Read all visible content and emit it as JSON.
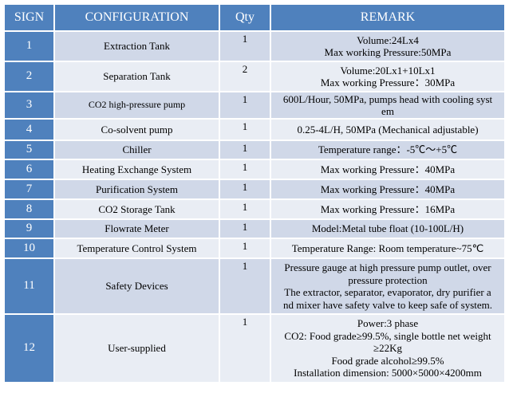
{
  "header": {
    "sign": "SIGN",
    "configuration": "CONFIGURATION",
    "qty": "Qty",
    "remark": "REMARK"
  },
  "rows": [
    {
      "sign": "1",
      "config": "Extraction Tank",
      "qty": "1",
      "remark": [
        "Volume:24Lx4",
        "Max working Pressure:50MPa"
      ]
    },
    {
      "sign": "2",
      "config": "Separation Tank",
      "qty": "2",
      "remark": [
        "Volume:20Lx1+10Lx1",
        "Max working Pressure：30MPa"
      ]
    },
    {
      "sign": "3",
      "config": "CO2 high-pressure pump",
      "qty": "1",
      "remark": [
        "600L/Hour, 50MPa, pumps head with cooling syst",
        "em"
      ]
    },
    {
      "sign": "4",
      "config": "Co-solvent pump",
      "qty": "1",
      "remark": [
        "0.25-4L/H, 50MPa (Mechanical adjustable)"
      ]
    },
    {
      "sign": "5",
      "config": "Chiller",
      "qty": "1",
      "remark": [
        "Temperature range：-5℃～+5℃"
      ]
    },
    {
      "sign": "6",
      "config": "Heating Exchange System",
      "qty": "1",
      "remark": [
        "Max working Pressure：40MPa"
      ]
    },
    {
      "sign": "7",
      "config": "Purification System",
      "qty": "1",
      "remark": [
        "Max working Pressure：40MPa"
      ]
    },
    {
      "sign": "8",
      "config": "CO2 Storage Tank",
      "qty": "1",
      "remark": [
        "Max working Pressure：16MPa"
      ]
    },
    {
      "sign": "9",
      "config": "Flowrate Meter",
      "qty": "1",
      "remark": [
        "Model:Metal tube float (10-100L/H)"
      ]
    },
    {
      "sign": "10",
      "config": "Temperature Control System",
      "qty": "1",
      "remark": [
        "Temperature Range: Room temperature~75℃"
      ]
    },
    {
      "sign": "11",
      "config": "Safety Devices",
      "qty": "1",
      "remark": [
        "Pressure gauge at high pressure pump outlet, over",
        "pressure protection",
        "The extractor, separator, evaporator, dry purifier a",
        "nd mixer have safety valve to keep safe of system."
      ]
    },
    {
      "sign": "12",
      "config": "User-supplied",
      "qty": "1",
      "remark": [
        "Power:3 phase",
        "CO2: Food grade≥99.5%, single bottle net weight",
        "≥22Kg",
        "Food grade alcohol≥99.5%",
        "Installation dimension: 5000×5000×4200mm"
      ]
    }
  ]
}
